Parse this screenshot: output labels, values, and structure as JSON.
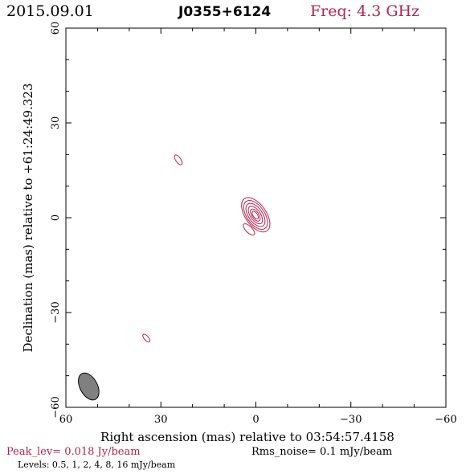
{
  "header": {
    "date": "2015.09.01",
    "source": "J0355+6124",
    "freq": "Freq: 4.3 GHz"
  },
  "footer": {
    "peak": "Peak_lev=  0.018 Jy/beam",
    "rms": "Rms_noise=   0.1 mJy/beam",
    "levels": "Levels: 0.5,    1,    2,    4,    8,   16 mJy/beam"
  },
  "colors": {
    "contour": "#b5244d",
    "accent_text": "#b5244d",
    "beam_fill": "#808080"
  },
  "chart_data": {
    "type": "contour",
    "xlabel": "Right ascension (mas) relative to 03:54:57.4158",
    "ylabel": "Declination (mas) relative to +61:24:49.323",
    "xlim": [
      60,
      -60
    ],
    "ylim": [
      -60,
      60
    ],
    "x_ticks": [
      60,
      30,
      0,
      -30,
      -60
    ],
    "y_ticks": [
      60,
      30,
      0,
      -30,
      -60
    ],
    "x_tick_labels": [
      "60",
      "30",
      "0",
      "−30",
      "−60"
    ],
    "y_tick_labels": [
      "60",
      "30",
      "0",
      "−30",
      "−60"
    ],
    "contour_levels_mJy": [
      0.5,
      1,
      2,
      4,
      8,
      16
    ],
    "components": [
      {
        "name": "core",
        "x": 0.2,
        "y": 0.8,
        "levels": 6,
        "major": [
          1.4,
          2.2,
          3.2,
          4.2,
          5.2,
          6.2
        ],
        "minor": [
          0.7,
          1.1,
          1.6,
          2.2,
          2.8,
          3.3
        ],
        "pa": -35,
        "cx_offset": [
          0.0,
          0.1,
          0.2,
          0.3,
          0.45,
          0.6
        ],
        "cy_offset": [
          0.0,
          0.1,
          0.2,
          0.3,
          0.4,
          0.5
        ]
      },
      {
        "name": "knot-sw",
        "x": 2.2,
        "y": -3.7,
        "levels": 1,
        "major": [
          2.3
        ],
        "minor": [
          1.0
        ],
        "pa": -45
      },
      {
        "name": "knot-ne",
        "x": 24.5,
        "y": 18.3,
        "levels": 1,
        "major": [
          1.8
        ],
        "minor": [
          0.8
        ],
        "pa": -35
      },
      {
        "name": "knot-s",
        "x": 34.6,
        "y": -38.1,
        "levels": 1,
        "major": [
          1.5
        ],
        "minor": [
          0.7
        ],
        "pa": -40
      }
    ],
    "beam": {
      "x": 52.8,
      "y": -53.4,
      "major": 9.2,
      "minor": 5.5,
      "pa": -28
    }
  }
}
